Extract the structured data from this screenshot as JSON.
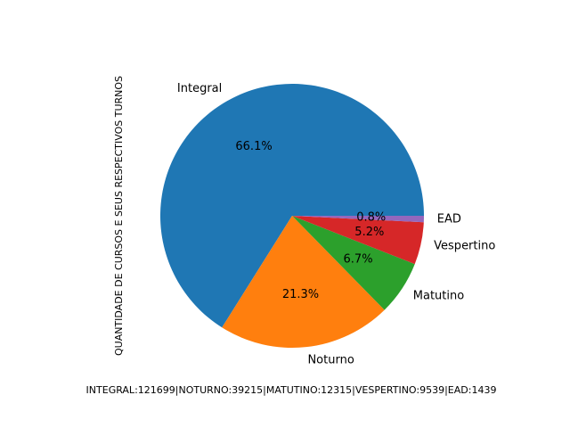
{
  "chart_data": {
    "type": "pie",
    "title": "",
    "ylabel": "QUANTIDADE DE CURSOS E SEUS RESPECTIVOS TURNOS",
    "xlabel": "INTEGRAL:121699|NOTURNO:39215|MATUTINO:12315|VESPERTINO:9539|EAD:1439",
    "categories": [
      "Integral",
      "Noturno",
      "Matutino",
      "Vespertino",
      "EAD"
    ],
    "values": [
      121699,
      39215,
      12315,
      9539,
      1439
    ],
    "percent_labels": [
      "66.1%",
      "21.3%",
      "6.7%",
      "5.2%",
      "0.8%"
    ],
    "colors": [
      "#1f77b4",
      "#ff7f0e",
      "#2ca02c",
      "#d62728",
      "#9467bd"
    ],
    "start_angle_deg": 0,
    "direction": "counterclockwise"
  }
}
